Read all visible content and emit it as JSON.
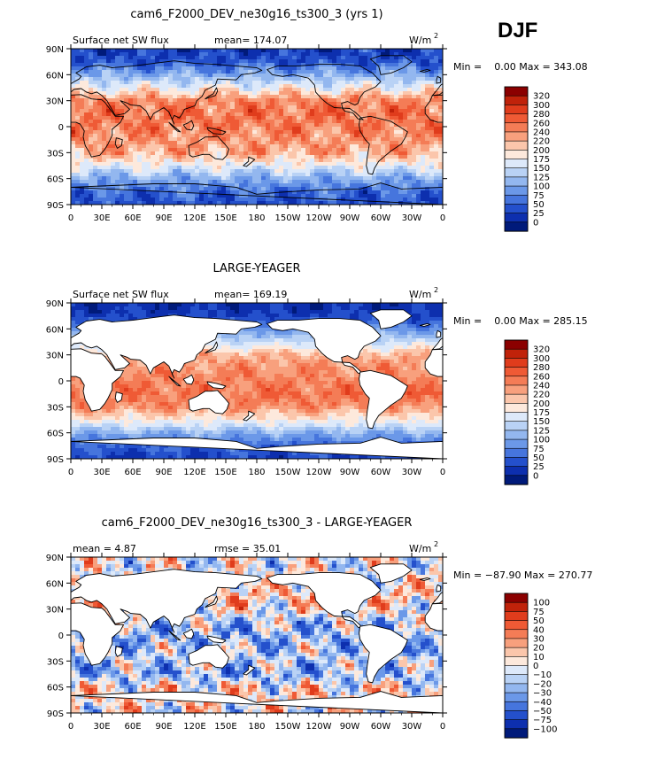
{
  "season_label": "DJF",
  "chart_data": [
    {
      "type": "heatmap",
      "title": "cam6_F2000_DEV_ne30g16_ts300_3 (yrs 1)",
      "left_label": "Surface net SW flux",
      "center_label": "mean= 174.07",
      "units": "W/m",
      "units_sup": "2",
      "minmax": "Min =    0.00 Max = 343.08",
      "x_ticks": [
        "0",
        "30E",
        "60E",
        "90E",
        "120E",
        "150E",
        "180",
        "150W",
        "120W",
        "90W",
        "60W",
        "30W",
        "0"
      ],
      "y_ticks": [
        "90N",
        "60N",
        "30N",
        "0",
        "30S",
        "60S",
        "90S"
      ],
      "levels": [
        "320",
        "300",
        "280",
        "260",
        "240",
        "220",
        "200",
        "175",
        "150",
        "125",
        "100",
        "75",
        "50",
        "25",
        "0"
      ],
      "colors": [
        "#8b0000",
        "#c0220a",
        "#e03c1c",
        "#ef5a35",
        "#f47c56",
        "#f8a07d",
        "#fbc6ab",
        "#fde9dc",
        "#dde9fa",
        "#b9d2f5",
        "#93b7ef",
        "#6b98e8",
        "#4675dd",
        "#2450cc",
        "#0d2fae",
        "#001a7a"
      ],
      "profile": [
        20,
        40,
        105,
        175,
        245,
        255,
        250,
        235,
        225,
        170,
        105,
        55,
        35
      ],
      "land": "filled"
    },
    {
      "type": "heatmap",
      "title": "LARGE-YEAGER",
      "left_label": "Surface net SW flux",
      "center_label": "mean= 169.19",
      "units": "W/m",
      "units_sup": "2",
      "minmax": "Min =    0.00 Max = 285.15",
      "x_ticks": [
        "0",
        "30E",
        "60E",
        "90E",
        "120E",
        "150E",
        "180",
        "150W",
        "120W",
        "90W",
        "60W",
        "30W",
        "0"
      ],
      "y_ticks": [
        "90N",
        "60N",
        "30N",
        "0",
        "30S",
        "60S",
        "90S"
      ],
      "levels": [
        "320",
        "300",
        "280",
        "260",
        "240",
        "220",
        "200",
        "175",
        "150",
        "125",
        "100",
        "75",
        "50",
        "25",
        "0"
      ],
      "colors": [
        "#8b0000",
        "#c0220a",
        "#e03c1c",
        "#ef5a35",
        "#f47c56",
        "#f8a07d",
        "#fbc6ab",
        "#fde9dc",
        "#dde9fa",
        "#b9d2f5",
        "#93b7ef",
        "#6b98e8",
        "#4675dd",
        "#2450cc",
        "#0d2fae",
        "#001a7a"
      ],
      "profile": [
        10,
        25,
        80,
        150,
        220,
        240,
        245,
        255,
        240,
        185,
        110,
        50,
        25
      ],
      "land": "white"
    },
    {
      "type": "heatmap",
      "title": "cam6_F2000_DEV_ne30g16_ts300_3 - LARGE-YEAGER",
      "left_label": "mean =    4.87",
      "center_label": "rmse =   35.01",
      "units": "W/m",
      "units_sup": "2",
      "minmax": "Min = −87.90 Max = 270.77",
      "x_ticks": [
        "0",
        "30E",
        "60E",
        "90E",
        "120E",
        "150E",
        "180",
        "150W",
        "120W",
        "90W",
        "60W",
        "30W",
        "0"
      ],
      "y_ticks": [
        "90N",
        "60N",
        "30N",
        "0",
        "30S",
        "60S",
        "90S"
      ],
      "levels": [
        "100",
        "75",
        "50",
        "40",
        "30",
        "20",
        "10",
        "0",
        "−10",
        "−20",
        "−30",
        "−40",
        "−50",
        "−75",
        "−100"
      ],
      "colors": [
        "#8b0000",
        "#c0220a",
        "#e03c1c",
        "#ef5a35",
        "#f47c56",
        "#f8a07d",
        "#fbc6ab",
        "#fde9dc",
        "#dde9fa",
        "#b9d2f5",
        "#93b7ef",
        "#6b98e8",
        "#4675dd",
        "#2450cc",
        "#0d2fae",
        "#001a7a"
      ],
      "profile": [
        0,
        -5,
        5,
        15,
        5,
        -20,
        -25,
        -20,
        -15,
        -30,
        5,
        10,
        0
      ],
      "land": "white"
    }
  ]
}
